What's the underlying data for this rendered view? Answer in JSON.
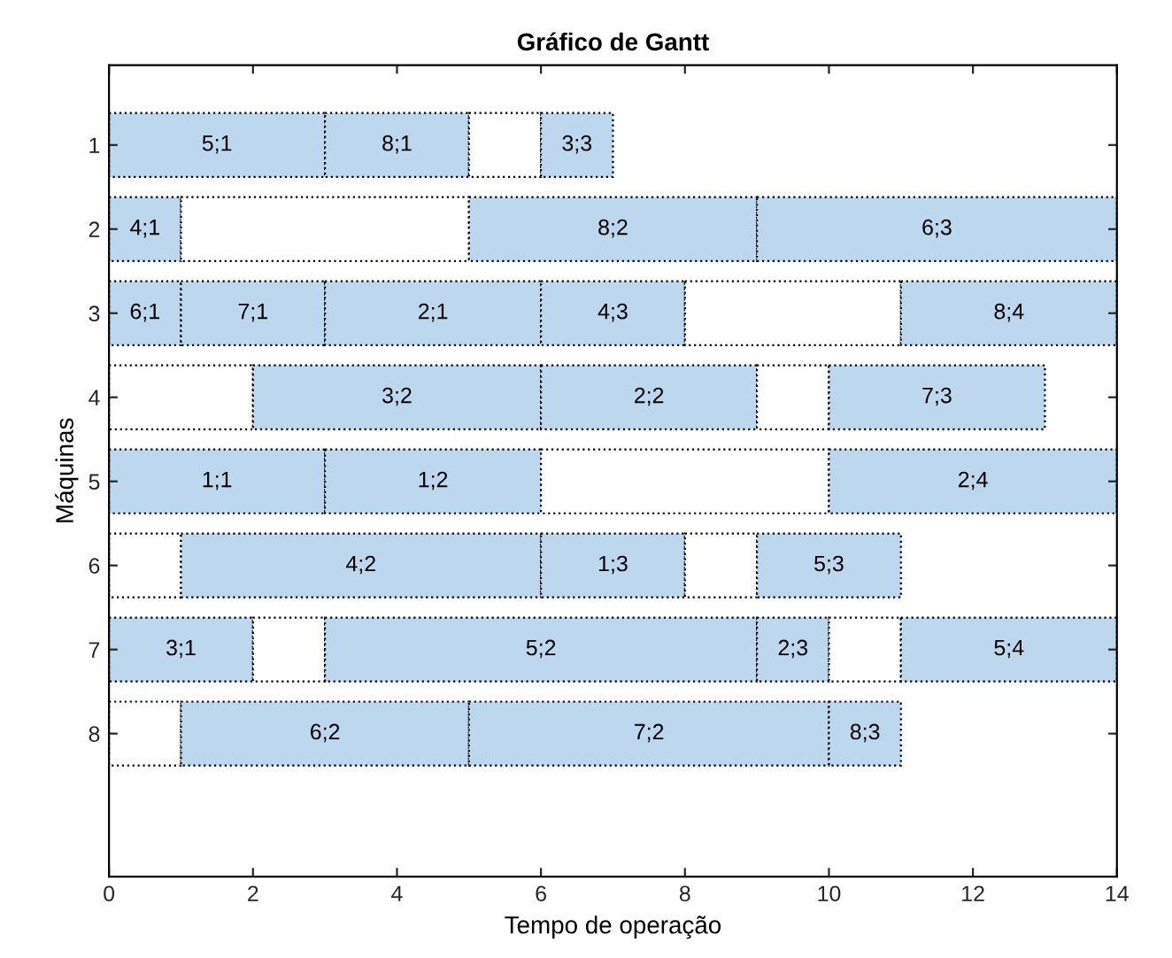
{
  "chart_data": {
    "type": "bar",
    "orientation": "horizontal",
    "stacked": true,
    "title": "Gráfico de Gantt",
    "xlabel": "Tempo de operação",
    "ylabel": "Máquinas",
    "categories": [
      "1",
      "2",
      "3",
      "4",
      "5",
      "6",
      "7",
      "8"
    ],
    "series": [
      {
        "values": [
          3,
          1,
          1,
          2,
          3,
          1,
          2,
          1
        ],
        "colors": [
          "#bdd7ee",
          "#bdd7ee",
          "#bdd7ee",
          "#ffffff",
          "#bdd7ee",
          "#ffffff",
          "#bdd7ee",
          "#ffffff"
        ]
      },
      {
        "values": [
          2,
          4,
          2,
          4,
          3,
          5,
          1,
          4
        ],
        "colors": [
          "#bdd7ee",
          "#ffffff",
          "#bdd7ee",
          "#bdd7ee",
          "#bdd7ee",
          "#bdd7ee",
          "#ffffff",
          "#bdd7ee"
        ]
      },
      {
        "values": [
          1,
          4,
          3,
          3,
          4,
          2,
          6,
          5
        ],
        "colors": [
          "#ffffff",
          "#bdd7ee",
          "#bdd7ee",
          "#bdd7ee",
          "#ffffff",
          "#bdd7ee",
          "#bdd7ee",
          "#bdd7ee"
        ]
      },
      {
        "values": [
          1,
          5,
          2,
          1,
          4,
          1,
          1,
          1
        ],
        "colors": [
          "#bdd7ee",
          "#bdd7ee",
          "#bdd7ee",
          "#ffffff",
          "#bdd7ee",
          "#ffffff",
          "#bdd7ee",
          "#bdd7ee"
        ]
      },
      {
        "values": [
          null,
          null,
          3,
          3,
          null,
          2,
          1,
          null
        ],
        "colors": [
          "#ffffff",
          "#ffffff",
          "#ffffff",
          "#bdd7ee",
          "#ffffff",
          "#bdd7ee",
          "#ffffff",
          "#ffffff"
        ]
      },
      {
        "values": [
          null,
          null,
          3,
          null,
          null,
          null,
          3,
          null
        ],
        "colors": [
          "#ffffff",
          "#ffffff",
          "#bdd7ee",
          "#ffffff",
          "#ffffff",
          "#ffffff",
          "#bdd7ee",
          "#ffffff"
        ]
      }
    ],
    "annotations": [
      {
        "text": "5;1",
        "x": 1.5,
        "y": "1"
      },
      {
        "text": "8;1",
        "x": 4,
        "y": "1"
      },
      {
        "text": "3;3",
        "x": 6.5,
        "y": "1"
      },
      {
        "text": "4;1",
        "x": 0.5,
        "y": "2"
      },
      {
        "text": "8;2",
        "x": 7,
        "y": "2"
      },
      {
        "text": "6;3",
        "x": 11.5,
        "y": "2"
      },
      {
        "text": "6;1",
        "x": 0.5,
        "y": "3"
      },
      {
        "text": "7;1",
        "x": 2,
        "y": "3"
      },
      {
        "text": "2;1",
        "x": 4.5,
        "y": "3"
      },
      {
        "text": "4;3",
        "x": 7,
        "y": "3"
      },
      {
        "text": "8;4",
        "x": 12.5,
        "y": "3"
      },
      {
        "text": "3;2",
        "x": 4,
        "y": "4"
      },
      {
        "text": "2;2",
        "x": 7.5,
        "y": "4"
      },
      {
        "text": "7;3",
        "x": 11.5,
        "y": "4"
      },
      {
        "text": "1;1",
        "x": 1.5,
        "y": "5"
      },
      {
        "text": "1;2",
        "x": 4.5,
        "y": "5"
      },
      {
        "text": "2;4",
        "x": 12,
        "y": "5"
      },
      {
        "text": "4;2",
        "x": 3.5,
        "y": "6"
      },
      {
        "text": "1;3",
        "x": 7,
        "y": "6"
      },
      {
        "text": "5;3",
        "x": 10,
        "y": "6"
      },
      {
        "text": "3;1",
        "x": 1,
        "y": "7"
      },
      {
        "text": "5;2",
        "x": 6,
        "y": "7"
      },
      {
        "text": "2;3",
        "x": 9.5,
        "y": "7"
      },
      {
        "text": "5;4",
        "x": 12.5,
        "y": "7"
      },
      {
        "text": "6;2",
        "x": 3,
        "y": "8"
      },
      {
        "text": "7;2",
        "x": 7.5,
        "y": "8"
      },
      {
        "text": "8;3",
        "x": 10.5,
        "y": "8"
      }
    ],
    "xlim": [
      0,
      14
    ],
    "xticks": [
      0,
      2,
      4,
      6,
      8,
      10,
      12,
      14
    ],
    "grid": false,
    "legend": false
  }
}
